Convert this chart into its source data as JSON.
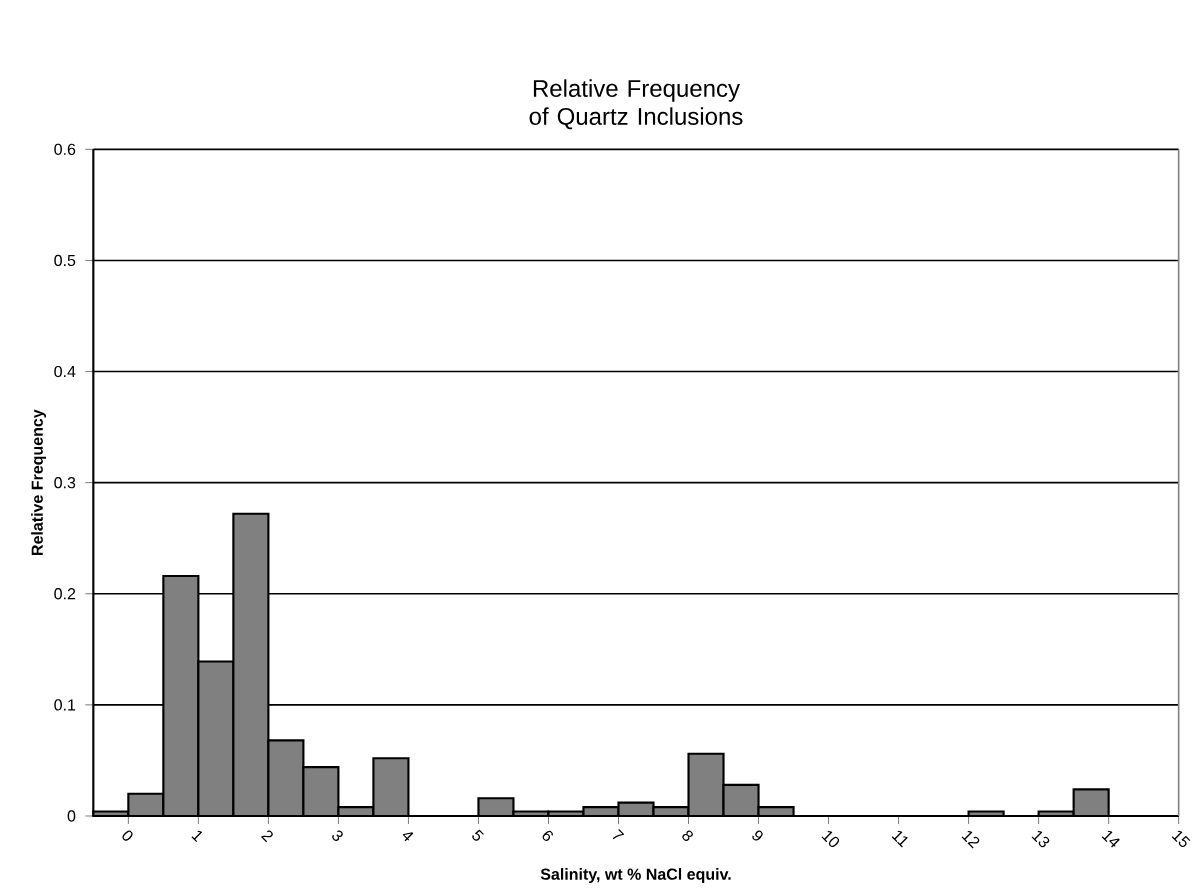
{
  "chart_data": {
    "type": "histogram",
    "title": "Relative Frequency of Quartz Inclusions",
    "xlabel": "Salinity, wt % NaCl equiv.",
    "ylabel": "Relative Frequency",
    "bins": [
      -0.5,
      0,
      0.5,
      1,
      1.5,
      2,
      2.5,
      3,
      3.5,
      4,
      4.5,
      5,
      5.5,
      6,
      6.5,
      7,
      7.5,
      8,
      8.5,
      9,
      9.5,
      10,
      10.5,
      11,
      11.5,
      12,
      12.5,
      13,
      13.5,
      14,
      14.5,
      15
    ],
    "values": [
      0.004,
      0.02,
      0.216,
      0.139,
      0.272,
      0.068,
      0.044,
      0.008,
      0.052,
      0,
      0,
      0.016,
      0.004,
      0.004,
      0.008,
      0.012,
      0.008,
      0.056,
      0.028,
      0.008,
      0,
      0,
      0,
      0,
      0,
      0.004,
      0,
      0.004,
      0.024,
      0,
      0
    ],
    "color": "#808080",
    "xlim": [
      -0.5,
      15
    ],
    "ylim": [
      0,
      0.6
    ],
    "xticks": [
      0,
      1,
      2,
      3,
      4,
      5,
      6,
      7,
      8,
      9,
      10,
      11,
      12,
      13,
      14,
      15
    ],
    "yticks": [
      0,
      0.1,
      0.2,
      0.3,
      0.4,
      0.5,
      0.6
    ],
    "grid": "y"
  }
}
